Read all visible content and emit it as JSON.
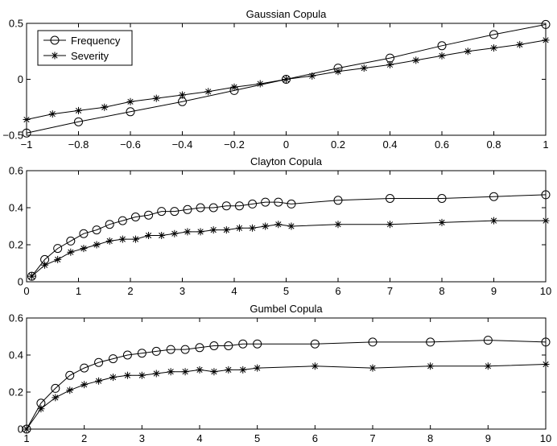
{
  "chart_data": [
    {
      "type": "line",
      "title": "Gaussian Copula",
      "xlim": [
        -1,
        1
      ],
      "ylim": [
        -0.5,
        0.5
      ],
      "xticks": [
        -1,
        -0.8,
        -0.6,
        -0.4,
        -0.2,
        0,
        0.2,
        0.4,
        0.6,
        0.8,
        1
      ],
      "xtick_labels": [
        "−1",
        "−0.8",
        "−0.6",
        "−0.4",
        "−0.2",
        "0",
        "0.2",
        "0.4",
        "0.6",
        "0.8",
        "1"
      ],
      "yticks": [
        -0.5,
        0,
        0.5
      ],
      "ytick_labels": [
        "−0.5",
        "0",
        "0.5"
      ],
      "legend": {
        "position": "top-left",
        "entries": [
          "Frequency",
          "Severity"
        ]
      },
      "series": [
        {
          "name": "Frequency",
          "marker": "circle",
          "x": [
            -1,
            -0.8,
            -0.6,
            -0.4,
            -0.2,
            0,
            0.2,
            0.4,
            0.6,
            0.8,
            1
          ],
          "values": [
            -0.48,
            -0.38,
            -0.29,
            -0.2,
            -0.1,
            0.0,
            0.1,
            0.19,
            0.3,
            0.4,
            0.49
          ]
        },
        {
          "name": "Severity",
          "marker": "star",
          "x": [
            -1,
            -0.9,
            -0.8,
            -0.7,
            -0.6,
            -0.5,
            -0.4,
            -0.3,
            -0.2,
            -0.1,
            0,
            0.1,
            0.2,
            0.3,
            0.4,
            0.5,
            0.6,
            0.7,
            0.8,
            0.9,
            1
          ],
          "values": [
            -0.36,
            -0.31,
            -0.28,
            -0.25,
            -0.2,
            -0.17,
            -0.14,
            -0.11,
            -0.07,
            -0.04,
            0.0,
            0.03,
            0.07,
            0.1,
            0.13,
            0.17,
            0.21,
            0.25,
            0.28,
            0.31,
            0.35
          ]
        }
      ]
    },
    {
      "type": "line",
      "title": "Clayton Copula",
      "xlim": [
        0,
        10
      ],
      "ylim": [
        0,
        0.6
      ],
      "xticks": [
        0,
        1,
        2,
        3,
        4,
        5,
        6,
        7,
        8,
        9,
        10
      ],
      "xtick_labels": [
        "0",
        "1",
        "2",
        "3",
        "4",
        "5",
        "6",
        "7",
        "8",
        "9",
        "10"
      ],
      "yticks": [
        0,
        0.2,
        0.4,
        0.6
      ],
      "ytick_labels": [
        "0",
        "0.2",
        "0.4",
        "0.6"
      ],
      "series": [
        {
          "name": "Frequency",
          "marker": "circle",
          "x": [
            0.1,
            0.35,
            0.6,
            0.85,
            1.1,
            1.35,
            1.6,
            1.85,
            2.1,
            2.35,
            2.6,
            2.85,
            3.1,
            3.35,
            3.6,
            3.85,
            4.1,
            4.35,
            4.6,
            4.85,
            5.1,
            6,
            7,
            8,
            9,
            10
          ],
          "values": [
            0.03,
            0.12,
            0.18,
            0.22,
            0.26,
            0.28,
            0.31,
            0.33,
            0.35,
            0.36,
            0.38,
            0.38,
            0.39,
            0.4,
            0.4,
            0.41,
            0.41,
            0.42,
            0.43,
            0.43,
            0.42,
            0.44,
            0.45,
            0.45,
            0.46,
            0.47
          ]
        },
        {
          "name": "Severity",
          "marker": "star",
          "x": [
            0.1,
            0.35,
            0.6,
            0.85,
            1.1,
            1.35,
            1.6,
            1.85,
            2.1,
            2.35,
            2.6,
            2.85,
            3.1,
            3.35,
            3.6,
            3.85,
            4.1,
            4.35,
            4.6,
            4.85,
            5.1,
            6,
            7,
            8,
            9,
            10
          ],
          "values": [
            0.03,
            0.09,
            0.12,
            0.16,
            0.18,
            0.2,
            0.22,
            0.23,
            0.23,
            0.25,
            0.25,
            0.26,
            0.27,
            0.27,
            0.28,
            0.28,
            0.29,
            0.29,
            0.3,
            0.31,
            0.3,
            0.31,
            0.31,
            0.32,
            0.33,
            0.33
          ]
        }
      ]
    },
    {
      "type": "line",
      "title": "Gumbel Copula",
      "xlim": [
        1,
        10
      ],
      "ylim": [
        0,
        0.6
      ],
      "xticks": [
        1,
        2,
        3,
        4,
        5,
        6,
        7,
        8,
        9,
        10
      ],
      "xtick_labels": [
        "1",
        "2",
        "3",
        "4",
        "5",
        "6",
        "7",
        "8",
        "9",
        "10"
      ],
      "yticks": [
        0,
        0.2,
        0.4,
        0.6
      ],
      "ytick_labels": [
        "0",
        "0.2",
        "0.4",
        "0.6"
      ],
      "series": [
        {
          "name": "Frequency",
          "marker": "circle",
          "x": [
            1,
            1.25,
            1.5,
            1.75,
            2,
            2.25,
            2.5,
            2.75,
            3,
            3.25,
            3.5,
            3.75,
            4,
            4.25,
            4.5,
            4.75,
            5,
            6,
            7,
            8,
            9,
            10
          ],
          "values": [
            0.0,
            0.14,
            0.22,
            0.29,
            0.33,
            0.36,
            0.38,
            0.4,
            0.41,
            0.42,
            0.43,
            0.43,
            0.44,
            0.45,
            0.45,
            0.46,
            0.46,
            0.46,
            0.47,
            0.47,
            0.48,
            0.47
          ]
        },
        {
          "name": "Severity",
          "marker": "star",
          "x": [
            1,
            1.25,
            1.5,
            1.75,
            2,
            2.25,
            2.5,
            2.75,
            3,
            3.25,
            3.5,
            3.75,
            4,
            4.25,
            4.5,
            4.75,
            5,
            6,
            7,
            8,
            9,
            10
          ],
          "values": [
            0.0,
            0.11,
            0.17,
            0.21,
            0.24,
            0.26,
            0.28,
            0.29,
            0.29,
            0.3,
            0.31,
            0.31,
            0.32,
            0.31,
            0.32,
            0.32,
            0.33,
            0.34,
            0.33,
            0.34,
            0.34,
            0.35
          ]
        }
      ]
    }
  ]
}
